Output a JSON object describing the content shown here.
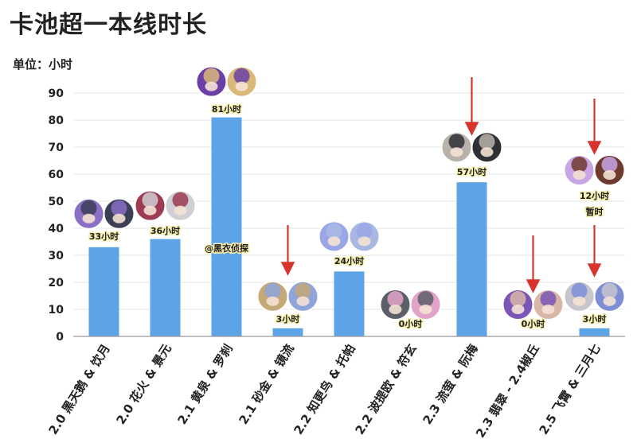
{
  "header": {
    "title": "卡池超一本线时长",
    "unit": "单位：小时"
  },
  "colors": {
    "bar": "#5da4e6",
    "grid": "#e4e4e4",
    "arrow": "#d8342c",
    "axis": "#999999"
  },
  "chart_data": {
    "type": "bar",
    "title": "卡池超一本线时长",
    "ylabel": "单位：小时",
    "xlabel": "",
    "ylim": [
      0,
      90
    ],
    "yticks": [
      0,
      10,
      20,
      30,
      40,
      50,
      60,
      70,
      80,
      90
    ],
    "grid": true,
    "categories": [
      "2.0 黑天鹅 & 饮月",
      "2.0 花火 & 景元",
      "2.1 黄泉 & 罗刹",
      "2.1 砂金 & 镜流",
      "2.2 知更鸟 & 托帕",
      "2.2 波提欧 & 符玄",
      "2.3 流萤 & 阮梅",
      "2.3 翡翠 - 2.4椒丘",
      "2.5 飞霄 & 三月七"
    ],
    "values": [
      33,
      36,
      81,
      3,
      24,
      0,
      57,
      0,
      3
    ],
    "data_labels": [
      "33小时",
      "36小时",
      "81小时",
      "3小时",
      "24小时",
      "0小时",
      "57小时",
      "0小时",
      "3小时"
    ],
    "annotations": [
      {
        "category_index": 2,
        "text": "@黑衣侦探"
      },
      {
        "category_index": 8,
        "text": "12小时"
      },
      {
        "category_index": 8,
        "text": "暂时"
      }
    ]
  },
  "portraits": [
    [
      "#8a6fc6",
      "#3b3f58"
    ],
    [
      "#9c3b52",
      "#cfcfd4"
    ],
    [
      "#6a3fa6",
      "#d9b878"
    ],
    [
      "#c4a876",
      "#8ea4da"
    ],
    [
      "#9aa6e6",
      "#a9b8e3"
    ],
    [
      "#5a5f6a",
      "#e3a3c9"
    ],
    [
      "#b8b2aa",
      "#2f2f36"
    ],
    [
      "#7a56b6",
      "#d8b6a8"
    ],
    [
      "#c6c6cc",
      "#7d8ed6"
    ]
  ],
  "extra_portraits": [
    "#c8a6e6",
    "#6e3a2e"
  ]
}
